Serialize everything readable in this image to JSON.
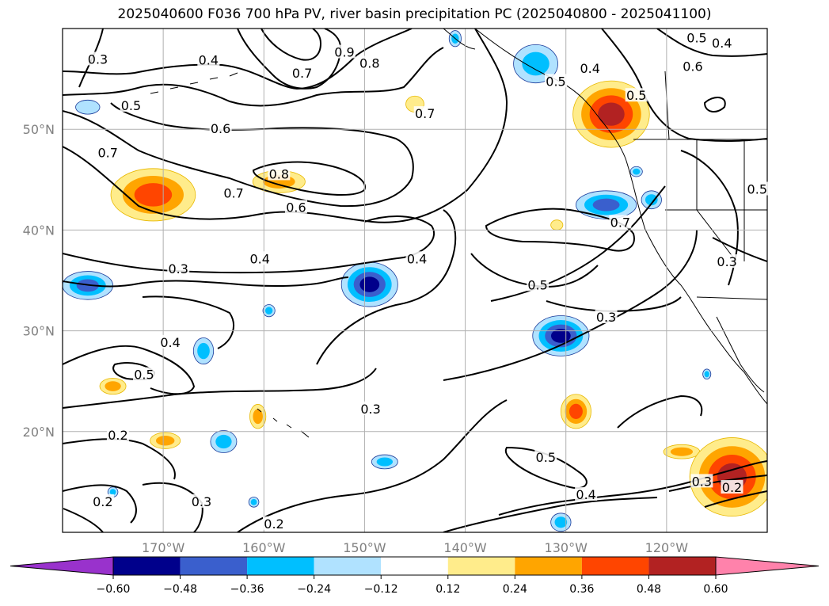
{
  "title": "2025040600 F036 700 hPa PV, river basin precipitation PC (2025040800 - 2025041100)",
  "map": {
    "lon_range": [
      -180,
      -110
    ],
    "lat_range": [
      10,
      60
    ],
    "projection": "equirectangular",
    "gridlines": true,
    "lon_ticks": [
      {
        "lon": -170,
        "label": "170°W"
      },
      {
        "lon": -160,
        "label": "160°W"
      },
      {
        "lon": -150,
        "label": "150°W"
      },
      {
        "lon": -140,
        "label": "140°W"
      },
      {
        "lon": -130,
        "label": "130°W"
      },
      {
        "lon": -120,
        "label": "120°W"
      }
    ],
    "lat_ticks": [
      {
        "lat": 50,
        "label": "50°N"
      },
      {
        "lat": 40,
        "label": "40°N"
      },
      {
        "lat": 30,
        "label": "30°N"
      },
      {
        "lat": 20,
        "label": "20°N"
      }
    ],
    "contour_labels": [
      {
        "lon": -176.5,
        "lat": 56.9,
        "text": "0.3"
      },
      {
        "lon": -165.5,
        "lat": 56.8,
        "text": "0.4"
      },
      {
        "lon": -173.2,
        "lat": 52.3,
        "text": "0.5"
      },
      {
        "lon": -175.5,
        "lat": 47.6,
        "text": "0.7"
      },
      {
        "lon": -164.3,
        "lat": 50.0,
        "text": "0.6"
      },
      {
        "lon": -149.5,
        "lat": 56.5,
        "text": "0.8"
      },
      {
        "lon": -152.0,
        "lat": 57.6,
        "text": "0.9"
      },
      {
        "lon": -156.2,
        "lat": 55.5,
        "text": "0.7"
      },
      {
        "lon": -158.5,
        "lat": 45.5,
        "text": "0.8"
      },
      {
        "lon": -163.0,
        "lat": 43.6,
        "text": "0.7"
      },
      {
        "lon": -156.8,
        "lat": 42.2,
        "text": "0.6"
      },
      {
        "lon": -144.0,
        "lat": 51.5,
        "text": "0.7"
      },
      {
        "lon": -168.5,
        "lat": 36.1,
        "text": "0.3"
      },
      {
        "lon": -160.4,
        "lat": 37.1,
        "text": "0.4"
      },
      {
        "lon": -144.8,
        "lat": 37.1,
        "text": "0.4"
      },
      {
        "lon": -132.8,
        "lat": 34.5,
        "text": "0.5"
      },
      {
        "lon": -124.6,
        "lat": 40.7,
        "text": "0.7"
      },
      {
        "lon": -126.0,
        "lat": 31.3,
        "text": "0.3"
      },
      {
        "lon": -169.3,
        "lat": 28.8,
        "text": "0.4"
      },
      {
        "lon": -171.9,
        "lat": 25.6,
        "text": "0.5"
      },
      {
        "lon": -149.4,
        "lat": 22.2,
        "text": "0.3"
      },
      {
        "lon": -174.5,
        "lat": 19.6,
        "text": "0.2"
      },
      {
        "lon": -176.0,
        "lat": 13.0,
        "text": "0.2"
      },
      {
        "lon": -166.2,
        "lat": 13.0,
        "text": "0.3"
      },
      {
        "lon": -159.0,
        "lat": 10.8,
        "text": "0.2"
      },
      {
        "lon": -132.0,
        "lat": 17.4,
        "text": "0.5"
      },
      {
        "lon": -128.0,
        "lat": 13.7,
        "text": "0.4"
      },
      {
        "lon": -116.5,
        "lat": 15.0,
        "text": "0.3"
      },
      {
        "lon": -113.5,
        "lat": 14.4,
        "text": "0.2"
      },
      {
        "lon": -127.6,
        "lat": 56.0,
        "text": "0.4"
      },
      {
        "lon": -123.0,
        "lat": 53.3,
        "text": "0.5"
      },
      {
        "lon": -131.0,
        "lat": 54.7,
        "text": "0.5"
      },
      {
        "lon": -117.0,
        "lat": 59.0,
        "text": "0.5"
      },
      {
        "lon": -114.5,
        "lat": 58.5,
        "text": "0.4"
      },
      {
        "lon": -117.4,
        "lat": 56.2,
        "text": "0.6"
      },
      {
        "lon": -111.0,
        "lat": 44.0,
        "text": "0.5"
      },
      {
        "lon": -114.0,
        "lat": 36.8,
        "text": "0.3"
      }
    ]
  },
  "colorbar": {
    "levels": [
      "−0.60",
      "−0.48",
      "−0.36",
      "−0.24",
      "−0.12",
      "0.12",
      "0.24",
      "0.36",
      "0.48",
      "0.60"
    ],
    "colors": [
      "#9932cc",
      "#00008b",
      "#3a5fcd",
      "#00bfff",
      "#b0e2ff",
      "#ffffff",
      "#ffec8b",
      "#ffa500",
      "#ff4500",
      "#b22222",
      "#ff82ab"
    ]
  },
  "precip_blobs": [
    {
      "lon": -171.0,
      "lat": 43.5,
      "rlon": 4.2,
      "rlat": 2.6,
      "level": 3
    },
    {
      "lon": -158.5,
      "lat": 44.8,
      "rlon": 2.6,
      "rlat": 1.1,
      "level": 2
    },
    {
      "lon": -145.0,
      "lat": 52.5,
      "rlon": 0.9,
      "rlat": 0.8,
      "level": 1
    },
    {
      "lon": -125.5,
      "lat": 51.5,
      "rlon": 3.8,
      "rlat": 3.3,
      "level": 4
    },
    {
      "lon": -130.9,
      "lat": 40.5,
      "rlon": 0.6,
      "rlat": 0.5,
      "level": 1
    },
    {
      "lon": -129.0,
      "lat": 22.0,
      "rlon": 1.5,
      "rlat": 1.7,
      "level": 3
    },
    {
      "lon": -118.5,
      "lat": 18.0,
      "rlon": 1.8,
      "rlat": 0.7,
      "level": 2
    },
    {
      "lon": -113.5,
      "lat": 15.5,
      "rlon": 4.2,
      "rlat": 3.9,
      "level": 4
    },
    {
      "lon": -175.0,
      "lat": 24.5,
      "rlon": 1.3,
      "rlat": 0.8,
      "level": 2
    },
    {
      "lon": -160.6,
      "lat": 21.5,
      "rlon": 0.8,
      "rlat": 1.2,
      "level": 2
    },
    {
      "lon": -169.8,
      "lat": 19.1,
      "rlon": 1.5,
      "rlat": 0.8,
      "level": 2
    },
    {
      "lon": -149.5,
      "lat": 34.6,
      "rlon": 2.8,
      "rlat": 2.2,
      "level": -4
    },
    {
      "lon": -130.5,
      "lat": 29.5,
      "rlon": 2.8,
      "rlat": 2.0,
      "level": -4
    },
    {
      "lon": -133.0,
      "lat": 56.5,
      "rlon": 2.2,
      "rlat": 1.9,
      "level": -2
    },
    {
      "lon": -126.0,
      "lat": 42.5,
      "rlon": 3.0,
      "rlat": 1.4,
      "level": -3
    },
    {
      "lon": -121.5,
      "lat": 43.0,
      "rlon": 1.0,
      "rlat": 0.9,
      "level": -2
    },
    {
      "lon": -177.5,
      "lat": 34.5,
      "rlon": 2.5,
      "rlat": 1.4,
      "level": -3
    },
    {
      "lon": -166.0,
      "lat": 28.0,
      "rlon": 1.0,
      "rlat": 1.3,
      "level": -2
    },
    {
      "lon": -164.0,
      "lat": 19.0,
      "rlon": 1.3,
      "rlat": 1.1,
      "level": -2
    },
    {
      "lon": -148.0,
      "lat": 17.0,
      "rlon": 1.3,
      "rlat": 0.7,
      "level": -2
    },
    {
      "lon": -130.5,
      "lat": 11.0,
      "rlon": 1.0,
      "rlat": 0.9,
      "level": -2
    },
    {
      "lon": -177.5,
      "lat": 52.2,
      "rlon": 1.2,
      "rlat": 0.7,
      "level": -1
    },
    {
      "lon": -175.0,
      "lat": 14.0,
      "rlon": 0.5,
      "rlat": 0.5,
      "level": -2
    },
    {
      "lon": -161.0,
      "lat": 13.0,
      "rlon": 0.5,
      "rlat": 0.5,
      "level": -2
    },
    {
      "lon": -159.5,
      "lat": 32.0,
      "rlon": 0.6,
      "rlat": 0.6,
      "level": -2
    },
    {
      "lon": -141.0,
      "lat": 59.0,
      "rlon": 0.6,
      "rlat": 0.8,
      "level": -2
    },
    {
      "lon": -116.0,
      "lat": 25.7,
      "rlon": 0.4,
      "rlat": 0.5,
      "level": -2
    },
    {
      "lon": -123.0,
      "lat": 45.8,
      "rlon": 0.6,
      "rlat": 0.5,
      "level": -2
    }
  ]
}
